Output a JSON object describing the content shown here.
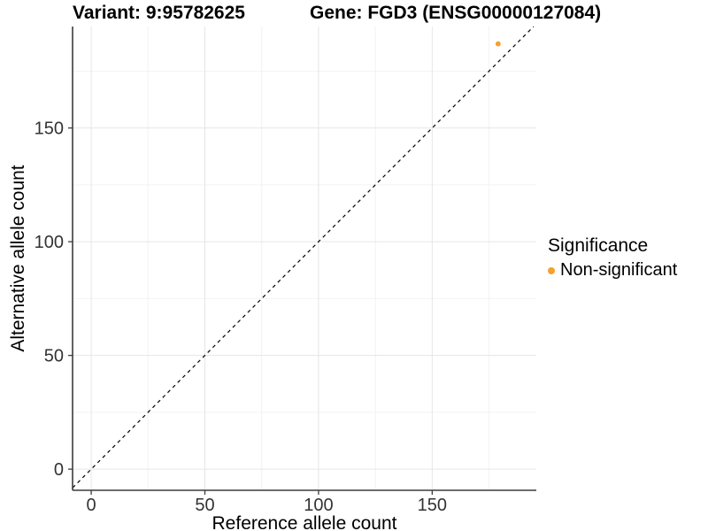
{
  "titles": {
    "variant": "Variant: 9:95782625",
    "gene": "Gene: FGD3 (ENSG00000127084)"
  },
  "chart_data": {
    "type": "scatter",
    "title_left": "Variant: 9:95782625",
    "title_right": "Gene: FGD3 (ENSG00000127084)",
    "xlabel": "Reference allele count",
    "ylabel": "Alternative allele count",
    "x_ticks": [
      "0",
      "50",
      "100",
      "150"
    ],
    "x_tick_values": [
      0,
      50,
      100,
      150
    ],
    "y_ticks": [
      "0",
      "50",
      "100",
      "150"
    ],
    "y_tick_values": [
      0,
      50,
      100,
      150
    ],
    "minor_tick_values": [
      25,
      75,
      125,
      175
    ],
    "xlim": [
      -8.2,
      195.8
    ],
    "ylim": [
      -9.3,
      194.6
    ],
    "grid": true,
    "identity_line": {
      "slope": 1,
      "intercept": 0,
      "style": "dashed",
      "color": "#000000"
    },
    "series": [
      {
        "name": "Non-significant",
        "color": "#F8A029",
        "points": [
          {
            "x": 179,
            "y": 187
          }
        ]
      }
    ],
    "legend": {
      "title": "Significance",
      "position": "right",
      "items": [
        {
          "label": "Non-significant",
          "color": "#F8A029"
        }
      ]
    },
    "colors": {
      "background": "#ffffff",
      "grid_major": "#e6e6e6",
      "grid_minor": "#f2f2f2",
      "axis_line": "#3c3c3c",
      "tick_text": "#333333",
      "point": "#F8A029"
    }
  },
  "legend": {
    "title": "Significance",
    "items": [
      {
        "label": "Non-significant",
        "color": "#F8A029"
      }
    ]
  }
}
